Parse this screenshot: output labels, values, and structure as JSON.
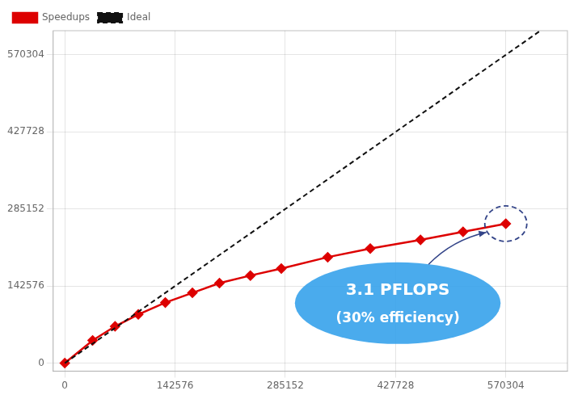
{
  "chart_data": {
    "type": "line",
    "series": [
      {
        "name": "Ideal",
        "color": "#111111",
        "line_style": "dashed",
        "x": [
          0,
          615000
        ],
        "values": [
          0,
          615000
        ]
      },
      {
        "name": "Speedups",
        "color": "#dd0000",
        "marker": "diamond",
        "line_style": "solid",
        "x": [
          0,
          36000,
          65000,
          95000,
          130000,
          165000,
          200000,
          240000,
          280000,
          340000,
          395000,
          460000,
          515000,
          570304
        ],
        "values": [
          0,
          42000,
          68000,
          90000,
          112000,
          130000,
          148000,
          162000,
          175000,
          196000,
          212000,
          228000,
          243000,
          258000
        ]
      }
    ],
    "xlim": [
      -15000,
      650000
    ],
    "ylim": [
      -15000,
      615000
    ],
    "xticks": [
      0,
      142576,
      285152,
      427728,
      570304
    ],
    "yticks": [
      0,
      142576,
      285152,
      427728,
      570304
    ],
    "grid": true,
    "legend": "upper left",
    "annotations": [
      "3.1 PFLOPS",
      "(30% efficiency)"
    ]
  }
}
